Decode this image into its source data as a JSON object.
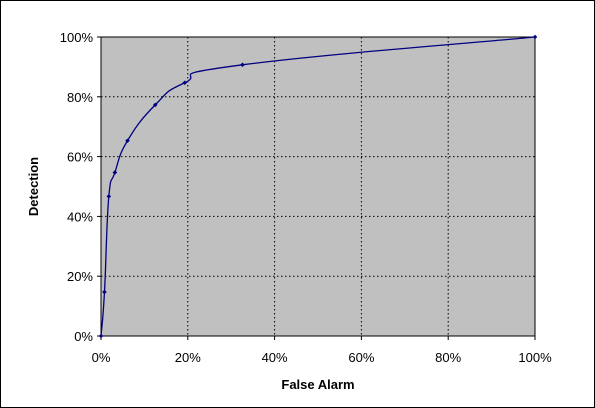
{
  "chart_data": {
    "type": "line",
    "title": "",
    "xlabel": "False Alarm",
    "ylabel": "Detection",
    "xlim": [
      0,
      100
    ],
    "ylim": [
      0,
      100
    ],
    "x_ticks": [
      0,
      20,
      40,
      60,
      80,
      100
    ],
    "y_ticks": [
      0,
      20,
      40,
      60,
      80,
      100
    ],
    "x_tick_labels": [
      "0%",
      "20%",
      "40%",
      "60%",
      "80%",
      "100%"
    ],
    "y_tick_labels": [
      "0%",
      "20%",
      "40%",
      "60%",
      "80%",
      "100%"
    ],
    "grid": true,
    "legend": "none",
    "series": [
      {
        "x": [
          0,
          0.8,
          1.8,
          3.2,
          6.1,
          12.5,
          19.3,
          32.6,
          100
        ],
        "y": [
          0,
          14.7,
          46.7,
          54.7,
          65.3,
          77.3,
          84.7,
          90.7,
          100
        ]
      }
    ]
  },
  "colors": {
    "plot_area": "#c0c0c0",
    "line": "#000080",
    "marker": "#000080",
    "grid": "#000000",
    "border": "#000000"
  }
}
